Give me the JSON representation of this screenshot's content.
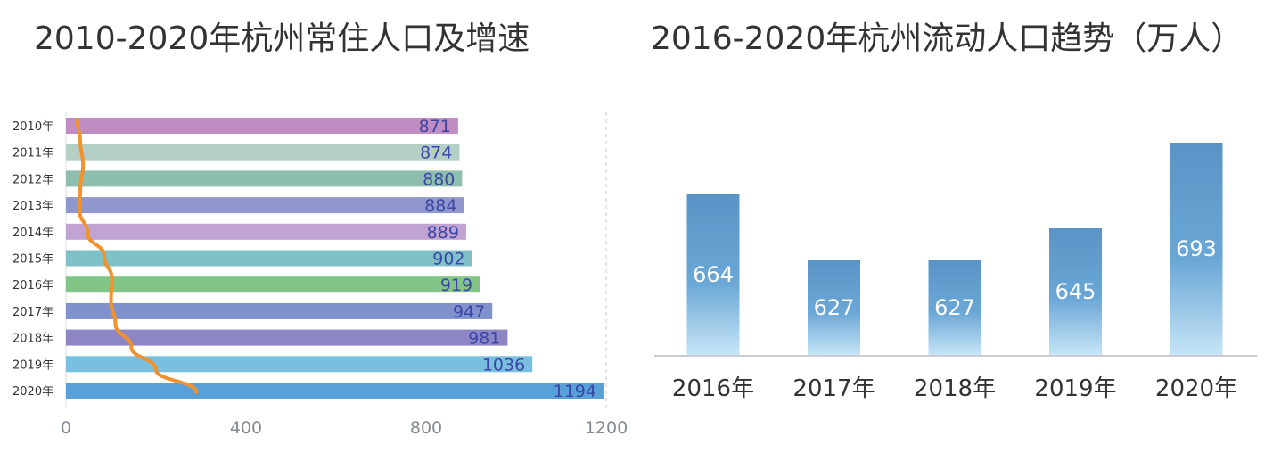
{
  "colors": {
    "bar_palette": [
      "#c08dc2",
      "#b3cfc6",
      "#8ebfae",
      "#8f97cd",
      "#c0a3d2",
      "#80c0c9",
      "#82c486",
      "#8092cc",
      "#8c87c4",
      "#79c0e0",
      "#57a0d8"
    ],
    "value_text": "#3c46a6",
    "trend_line": "#f0922d",
    "column_top": "#5a94c6",
    "column_bottom": "#c6e5f7",
    "axis_text": "#858a93",
    "category_text": "#333333"
  },
  "chart_data": [
    {
      "type": "bar",
      "orientation": "horizontal",
      "title": "2010-2020年杭州常住人口及增速",
      "categories": [
        "2010年",
        "2011年",
        "2012年",
        "2013年",
        "2014年",
        "2015年",
        "2016年",
        "2017年",
        "2018年",
        "2019年",
        "2020年"
      ],
      "values": [
        871,
        874,
        880,
        884,
        889,
        902,
        919,
        947,
        981,
        1036,
        1194
      ],
      "value_labels": [
        "871",
        "874",
        "880",
        "884",
        "889",
        "902",
        "919",
        "947",
        "981",
        "1036",
        "1194"
      ],
      "xlim": [
        0,
        1200
      ],
      "xticks": [
        0,
        400,
        800,
        1200
      ],
      "xtick_labels": [
        "0",
        "400",
        "800",
        "1200"
      ],
      "grid": "dashed vertical at 1200",
      "overlay": {
        "type": "line",
        "name": "增速",
        "unlabeled": true,
        "x": [
          25,
          32,
          38,
          32,
          30,
          48,
          85,
          102,
          100,
          110,
          145,
          200,
          290
        ]
      }
    },
    {
      "type": "bar",
      "title": "2016-2020年杭州流动人口趋势（万人）",
      "categories": [
        "2016年",
        "2017年",
        "2018年",
        "2019年",
        "2020年"
      ],
      "values": [
        664,
        627,
        627,
        645,
        693
      ],
      "value_labels": [
        "664",
        "627",
        "627",
        "645",
        "693"
      ],
      "ylim": [
        574,
        708
      ],
      "xlabel": "",
      "ylabel": ""
    }
  ]
}
